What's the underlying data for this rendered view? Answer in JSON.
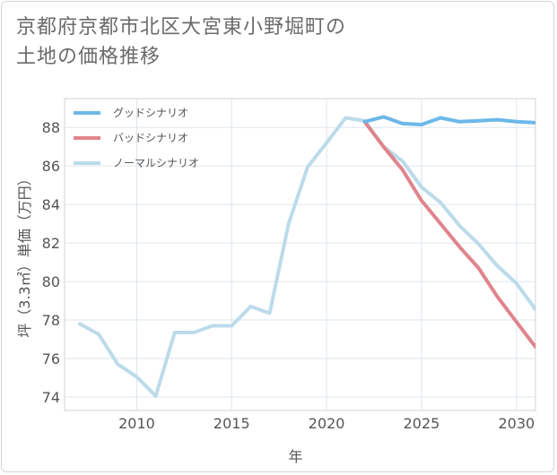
{
  "title": {
    "line1": "京都府京都市北区大宮東小野堀町の",
    "line2": "土地の価格推移"
  },
  "chart_data": {
    "type": "line",
    "xlabel": "年",
    "ylabel": "坪（3.3㎡）単価（万円）",
    "xlim": [
      2006.2,
      2031
    ],
    "ylim": [
      73.3,
      89.5
    ],
    "x_ticks": [
      2010,
      2015,
      2020,
      2025,
      2030
    ],
    "y_ticks": [
      74,
      76,
      78,
      80,
      82,
      84,
      86,
      88
    ],
    "grid": true,
    "legend_position": "top-left",
    "series": [
      {
        "name": "グッドシナリオ",
        "color": "#6cb8e8",
        "x": [
          2022,
          2023,
          2024,
          2025,
          2026,
          2027,
          2028,
          2029,
          2030,
          2031
        ],
        "values": [
          88.3,
          88.55,
          88.2,
          88.15,
          88.5,
          88.3,
          88.35,
          88.4,
          88.3,
          88.25
        ]
      },
      {
        "name": "バッドシナリオ",
        "color": "#e0848c",
        "x": [
          2022,
          2023,
          2024,
          2025,
          2026,
          2027,
          2028,
          2029,
          2030,
          2031
        ],
        "values": [
          88.3,
          87.0,
          85.8,
          84.2,
          83.0,
          81.8,
          80.7,
          79.2,
          77.9,
          76.6
        ]
      },
      {
        "name": "ノーマルシナリオ",
        "color": "#bcdbea",
        "x": [
          2007,
          2008,
          2009,
          2010,
          2011,
          2012,
          2013,
          2014,
          2015,
          2016,
          2017,
          2018,
          2019,
          2020,
          2021,
          2022,
          2023,
          2024,
          2025,
          2026,
          2027,
          2028,
          2029,
          2030,
          2031
        ],
        "values": [
          77.8,
          77.25,
          75.7,
          75.05,
          74.05,
          77.35,
          77.35,
          77.7,
          77.7,
          78.7,
          78.35,
          83.0,
          85.95,
          87.2,
          88.5,
          88.35,
          87.0,
          86.25,
          84.9,
          84.1,
          82.9,
          81.95,
          80.8,
          79.9,
          78.55
        ]
      }
    ]
  }
}
